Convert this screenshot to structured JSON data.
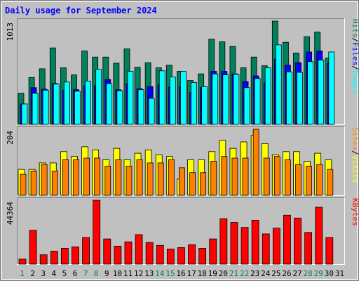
{
  "chart_data": {
    "type": "bar",
    "title": "Daily usage for September 2024",
    "days": [
      "1",
      "2",
      "3",
      "4",
      "5",
      "6",
      "7",
      "8",
      "9",
      "10",
      "11",
      "12",
      "13",
      "14",
      "15",
      "16",
      "17",
      "18",
      "19",
      "20",
      "21",
      "22",
      "23",
      "24",
      "25",
      "26",
      "27",
      "28",
      "29",
      "30",
      "31"
    ],
    "weekend_days": [
      "1",
      "7",
      "8",
      "14",
      "15",
      "21",
      "22",
      "28",
      "29"
    ],
    "colors": {
      "hits": "#00805c",
      "files": "#0000ff",
      "pages": "#00ffff",
      "visits": "#ffff00",
      "sites": "#ff8000",
      "kbytes": "#ff0000",
      "weekend_label": "#00805c",
      "weekday_label": "#000000",
      "panel_bg": "#c0c0c0",
      "frame_bg": "#c0c0c0"
    },
    "panels": [
      {
        "name": "hits-files-pages",
        "ymax_label": "1013",
        "ymax": 1013,
        "series_labels": [
          "Hits",
          "/",
          "Files",
          "/",
          "Pages"
        ],
        "series_label_colors": [
          "#00805c",
          "#000000",
          "#0000ff",
          "#000000",
          "#00ffff"
        ],
        "series": [
          {
            "name": "Hits",
            "color": "#00805c",
            "values": [
              305,
              460,
              545,
              750,
              555,
              485,
              720,
              660,
              660,
              600,
              740,
              560,
              605,
              555,
              580,
              520,
              430,
              495,
              835,
              810,
              765,
              555,
              660,
              575,
              1013,
              805,
              700,
              860,
              905,
              650,
              0
            ]
          },
          {
            "name": "Files",
            "color": "#0000ff",
            "values": [
              200,
              360,
              345,
              400,
              335,
              340,
              380,
              380,
              440,
              340,
              400,
              350,
              370,
              390,
              365,
              370,
              315,
              360,
              520,
              520,
              495,
              420,
              475,
              405,
              640,
              580,
              605,
              710,
              720,
              600,
              0
            ]
          },
          {
            "name": "Pages",
            "color": "#00ffff",
            "values": [
              200,
              305,
              335,
              395,
              415,
              325,
              425,
              540,
              400,
              330,
              520,
              340,
              255,
              525,
              465,
              520,
              410,
              370,
              495,
              485,
              490,
              360,
              450,
              555,
              780,
              515,
              510,
              615,
              630,
              710,
              0
            ]
          }
        ]
      },
      {
        "name": "visits-sites",
        "ymax_label": "204",
        "ymax": 204,
        "series_labels": [
          "Sites",
          "/",
          "Visits"
        ],
        "series_label_colors": [
          "#ff8000",
          "#000000",
          "#ffff00"
        ],
        "series": [
          {
            "name": "Visits",
            "color": "#ffff00",
            "values": [
              80,
              80,
              100,
              100,
              135,
              120,
              150,
              140,
              110,
              145,
              110,
              130,
              140,
              125,
              120,
              50,
              110,
              110,
              135,
              170,
              145,
              165,
              185,
              160,
              125,
              135,
              135,
              105,
              130,
              110,
              0
            ]
          },
          {
            "name": "Sites",
            "color": "#ff8000",
            "values": [
              65,
              75,
              95,
              75,
              110,
              110,
              115,
              115,
              90,
              110,
              90,
              110,
              100,
              100,
              110,
              85,
              70,
              70,
              105,
              120,
              115,
              115,
              204,
              115,
              120,
              110,
              95,
              90,
              95,
              80,
              0
            ]
          }
        ]
      },
      {
        "name": "kbytes",
        "ymax_label": "44364",
        "ymax": 44364,
        "series_labels": [
          "KBytes"
        ],
        "series_label_colors": [
          "#ff0000"
        ],
        "series": [
          {
            "name": "KBytes",
            "color": "#ff0000",
            "values": [
              3500,
              23500,
              6500,
              9000,
              11000,
              12000,
              18500,
              44364,
              17500,
              12500,
              15500,
              20500,
              15000,
              13000,
              10500,
              11500,
              13500,
              11000,
              17500,
              31500,
              29000,
              25500,
              30500,
              21000,
              25000,
              34000,
              32000,
              22000,
              39500,
              18500,
              0
            ]
          }
        ]
      }
    ]
  }
}
